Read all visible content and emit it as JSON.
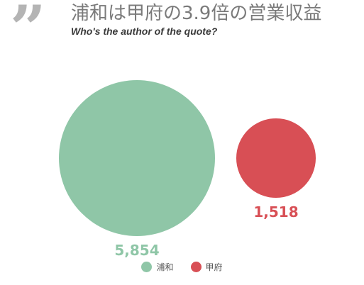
{
  "header": {
    "quote_glyph": "”",
    "title": "浦和は甲府の3.9倍の営業収益",
    "subtitle": "Who's the author of the quote?"
  },
  "chart_data": {
    "type": "bubble",
    "series": [
      {
        "name": "浦和",
        "value": 5854,
        "label": "5,854",
        "color": "#8fc6a7"
      },
      {
        "name": "甲府",
        "value": 1518,
        "label": "1,518",
        "color": "#d84f55"
      }
    ],
    "legend": "bottom-center"
  }
}
